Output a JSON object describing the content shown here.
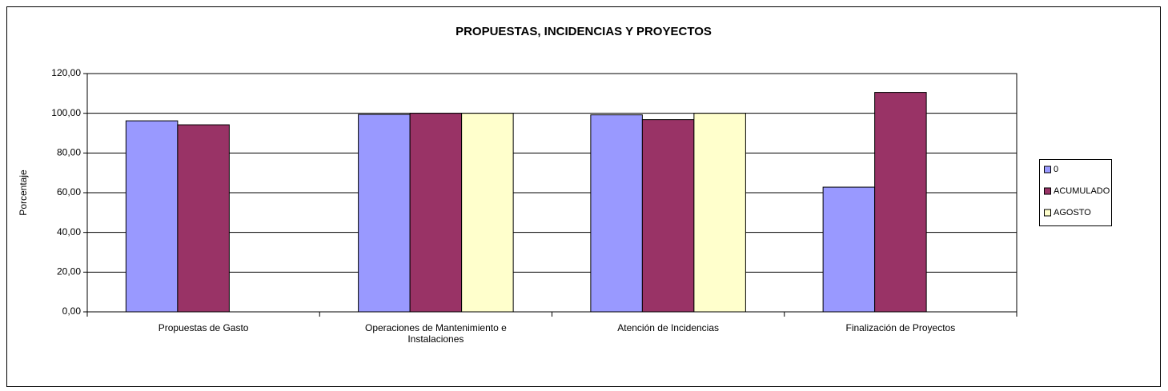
{
  "chart_data": {
    "type": "bar",
    "title": "PROPUESTAS, INCIDENCIAS Y PROYECTOS",
    "y_label": "Porcentaje",
    "categories": [
      "Propuestas de Gasto",
      "Operaciones de Mantenimiento e Instalaciones",
      "Atención de Incidencias",
      "Finalización de Proyectos"
    ],
    "series": [
      {
        "name": "0",
        "color": "#9999ff",
        "values": [
          96.2,
          99.4,
          99.2,
          62.8
        ]
      },
      {
        "name": "ACUMULADO",
        "color": "#993366",
        "values": [
          94.2,
          100,
          96.8,
          110.5
        ]
      },
      {
        "name": "AGOSTO",
        "color": "#ffffcc",
        "values": [
          null,
          100,
          100,
          null
        ]
      }
    ],
    "ylim": [
      0,
      120
    ],
    "yticks": [
      {
        "value": 0,
        "label": "0,00"
      },
      {
        "value": 20,
        "label": "20,00"
      },
      {
        "value": 40,
        "label": "40,00"
      },
      {
        "value": 60,
        "label": "60,00"
      },
      {
        "value": 80,
        "label": "80,00"
      },
      {
        "value": 100,
        "label": "100,00"
      },
      {
        "value": 120,
        "label": "120,00"
      }
    ],
    "grid": true,
    "legend": "right"
  }
}
